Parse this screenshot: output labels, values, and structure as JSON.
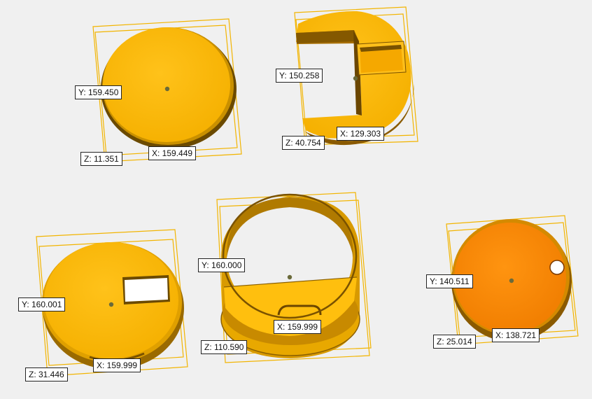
{
  "parts": [
    {
      "name": "round-lid",
      "color": "#ffbf0e",
      "dims": {
        "y": "Y: 159.450",
        "x": "X: 159.449",
        "z": "Z: 11.351"
      }
    },
    {
      "name": "cut-disc",
      "color": "#ffb000",
      "dims": {
        "y": "Y: 150.258",
        "x": "X: 129.303",
        "z": "Z: 40.754"
      }
    },
    {
      "name": "base-disc",
      "color": "#ffbf0e",
      "dims": {
        "y": "Y: 160.001",
        "x": "X: 159.999",
        "z": "Z: 31.446"
      }
    },
    {
      "name": "open-cylinder",
      "color": "#ffbf0e",
      "dims": {
        "y": "Y: 160.000",
        "x": "X: 159.999",
        "z": "Z: 110.590"
      }
    },
    {
      "name": "orange-disc",
      "color": "#ff8c00",
      "dims": {
        "y": "Y: 140.511",
        "x": "X: 138.721",
        "z": "Z: 25.014"
      }
    }
  ]
}
